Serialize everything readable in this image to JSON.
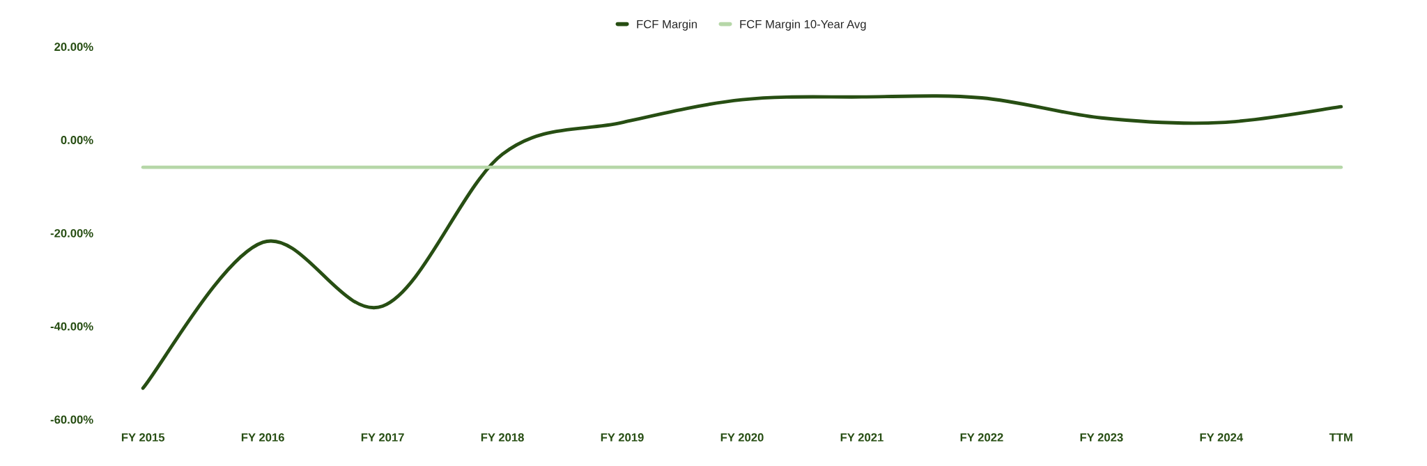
{
  "chart_data": {
    "type": "line",
    "categories": [
      "FY 2015",
      "FY 2016",
      "FY 2017",
      "FY 2018",
      "FY 2019",
      "FY 2020",
      "FY 2021",
      "FY 2022",
      "FY 2023",
      "FY 2024",
      "TTM"
    ],
    "series": [
      {
        "name": "FCF Margin",
        "color": "#274e13",
        "values": [
          -53.3,
          -22.0,
          -35.7,
          -3.1,
          3.7,
          8.6,
          9.2,
          9.0,
          4.7,
          3.7,
          7.1
        ]
      },
      {
        "name": "FCF Margin 10-Year Avg",
        "color": "#b6d7a8",
        "values": [
          -5.9,
          -5.9,
          -5.9,
          -5.9,
          -5.9,
          -5.9,
          -5.9,
          -5.9,
          -5.9,
          -5.9,
          -5.9
        ]
      }
    ],
    "ylim": [
      -60,
      20
    ],
    "yticks": [
      {
        "value": -60,
        "label": "-60.00%"
      },
      {
        "value": -40,
        "label": "-40.00%"
      },
      {
        "value": -20,
        "label": "-20.00%"
      },
      {
        "value": 0,
        "label": "0.00%"
      },
      {
        "value": 20,
        "label": "20.00%"
      }
    ],
    "legend": "top",
    "grid": false,
    "marker": "none",
    "line_style": "solid"
  }
}
